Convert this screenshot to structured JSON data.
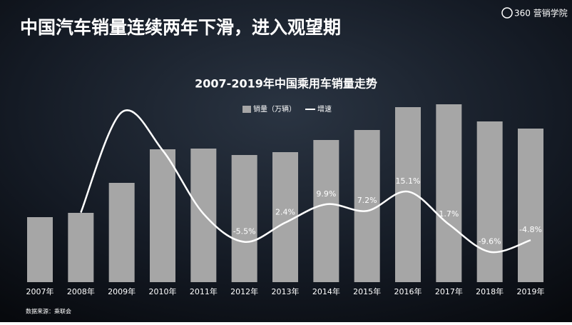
{
  "brand": "360 营销学院",
  "chart_data": {
    "type": "bar-line",
    "title": "中国汽车销量连续两年下滑，进入观望期",
    "subtitle": "2007-2019年中国乘用车销量走势",
    "source": "数据来源：乘联会",
    "categories": [
      "2007年",
      "2008年",
      "2009年",
      "2010年",
      "2011年",
      "2012年",
      "2013年",
      "2014年",
      "2015年",
      "2016年",
      "2017年",
      "2018年",
      "2019年"
    ],
    "ylim": [
      0,
      2700
    ],
    "y2lim": [
      -22,
      57
    ],
    "series": [
      {
        "name": "销量（万辆）",
        "type": "bar",
        "color": "#a6a6a6",
        "values": [
          910,
          970,
          1390,
          1860,
          1870,
          1780,
          1820,
          1990,
          2130,
          2450,
          2490,
          2250,
          2150
        ]
      },
      {
        "name": "增速",
        "type": "line",
        "axis": "y2",
        "color": "#ffffff",
        "values": [
          null,
          6.5,
          47.6,
          32,
          6,
          -5.5,
          2.4,
          9.9,
          7.2,
          15.1,
          1.7,
          -9.6,
          -4.8
        ],
        "value_labels": [
          null,
          null,
          null,
          null,
          null,
          "-5.5%",
          "2.4%",
          "9.9%",
          "7.2%",
          "15.1%",
          "1.7%",
          "-9.6%",
          "-4.8%"
        ]
      }
    ]
  }
}
